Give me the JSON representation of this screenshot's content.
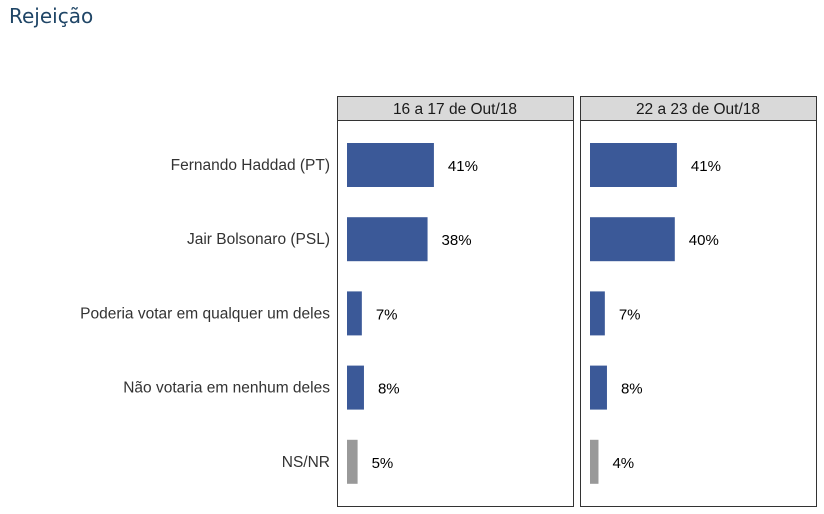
{
  "title": "Rejeição",
  "chart_data": {
    "type": "bar",
    "orientation": "horizontal",
    "categories": [
      "Fernando Haddad (PT)",
      "Jair Bolsonaro (PSL)",
      "Poderia votar em qualquer um deles",
      "Não votaria em nenhum deles",
      "NS/NR"
    ],
    "panels": [
      {
        "title": "16 a 17 de Out/18",
        "values": [
          41,
          38,
          7,
          8,
          5
        ],
        "labels": [
          "41%",
          "38%",
          "7%",
          "8%",
          "5%"
        ]
      },
      {
        "title": "22 a 23 de Out/18",
        "values": [
          41,
          40,
          7,
          8,
          4
        ],
        "labels": [
          "41%",
          "40%",
          "7%",
          "8%",
          "4%"
        ]
      }
    ],
    "colors": {
      "candidates": "#3b5998",
      "nsnr": "#999999",
      "strip": "#d9d9d9"
    },
    "grid": false
  }
}
